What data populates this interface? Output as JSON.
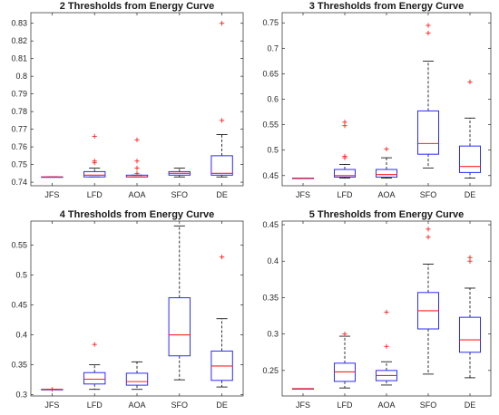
{
  "chart_data": [
    {
      "type": "box",
      "title": "2 Thresholds from Energy Curve",
      "categories": [
        "JFS",
        "LFD",
        "AOA",
        "SFO",
        "DE"
      ],
      "ylim": [
        0.738,
        0.836
      ],
      "yticks": [
        0.74,
        0.75,
        0.76,
        0.77,
        0.78,
        0.79,
        0.8,
        0.81,
        0.82,
        0.83
      ],
      "ytick_labels": [
        "0.74",
        "0.75",
        "0.76",
        "0.77",
        "0.78",
        "0.79",
        "0.8",
        "0.81",
        "0.82",
        "0.83"
      ],
      "boxes": [
        {
          "category": "JFS",
          "whislo": 0.743,
          "q1": 0.743,
          "med": 0.743,
          "q3": 0.743,
          "whishi": 0.743,
          "fliers": []
        },
        {
          "category": "LFD",
          "whislo": 0.743,
          "q1": 0.743,
          "med": 0.744,
          "q3": 0.746,
          "whishi": 0.748,
          "fliers": [
            0.751,
            0.752,
            0.766
          ]
        },
        {
          "category": "AOA",
          "whislo": 0.743,
          "q1": 0.743,
          "med": 0.743,
          "q3": 0.744,
          "whishi": 0.744,
          "fliers": [
            0.745,
            0.748,
            0.752,
            0.764
          ]
        },
        {
          "category": "SFO",
          "whislo": 0.743,
          "q1": 0.744,
          "med": 0.745,
          "q3": 0.746,
          "whishi": 0.748,
          "fliers": []
        },
        {
          "category": "DE",
          "whislo": 0.743,
          "q1": 0.744,
          "med": 0.745,
          "q3": 0.755,
          "whishi": 0.767,
          "fliers": [
            0.775,
            0.83
          ]
        }
      ]
    },
    {
      "type": "box",
      "title": "3 Thresholds from Energy Curve",
      "categories": [
        "JFS",
        "LFD",
        "AOA",
        "SFO",
        "DE"
      ],
      "ylim": [
        0.43,
        0.77
      ],
      "yticks": [
        0.45,
        0.5,
        0.55,
        0.6,
        0.65,
        0.7,
        0.75
      ],
      "ytick_labels": [
        "0.45",
        "0.5",
        "0.55",
        "0.6",
        "0.65",
        "0.7",
        "0.75"
      ],
      "boxes": [
        {
          "category": "JFS",
          "whislo": 0.445,
          "q1": 0.445,
          "med": 0.445,
          "q3": 0.445,
          "whishi": 0.445,
          "fliers": []
        },
        {
          "category": "LFD",
          "whislo": 0.445,
          "q1": 0.447,
          "med": 0.45,
          "q3": 0.462,
          "whishi": 0.472,
          "fliers": [
            0.485,
            0.488,
            0.548,
            0.555
          ]
        },
        {
          "category": "AOA",
          "whislo": 0.445,
          "q1": 0.447,
          "med": 0.452,
          "q3": 0.462,
          "whishi": 0.485,
          "fliers": [
            0.502
          ]
        },
        {
          "category": "SFO",
          "whislo": 0.465,
          "q1": 0.492,
          "med": 0.513,
          "q3": 0.577,
          "whishi": 0.675,
          "fliers": [
            0.73,
            0.745
          ]
        },
        {
          "category": "DE",
          "whislo": 0.445,
          "q1": 0.456,
          "med": 0.468,
          "q3": 0.508,
          "whishi": 0.563,
          "fliers": [
            0.634
          ]
        }
      ]
    },
    {
      "type": "box",
      "title": "4 Thresholds from Energy Curve",
      "categories": [
        "JFS",
        "LFD",
        "AOA",
        "SFO",
        "DE"
      ],
      "ylim": [
        0.298,
        0.59
      ],
      "yticks": [
        0.3,
        0.35,
        0.4,
        0.45,
        0.5,
        0.55
      ],
      "ytick_labels": [
        "0.3",
        "0.35",
        "0.4",
        "0.45",
        "0.5",
        "0.55"
      ],
      "boxes": [
        {
          "category": "JFS",
          "whislo": 0.309,
          "q1": 0.309,
          "med": 0.309,
          "q3": 0.309,
          "whishi": 0.309,
          "fliers": [
            0.309
          ]
        },
        {
          "category": "LFD",
          "whislo": 0.309,
          "q1": 0.318,
          "med": 0.326,
          "q3": 0.337,
          "whishi": 0.35,
          "fliers": [
            0.384
          ]
        },
        {
          "category": "AOA",
          "whislo": 0.309,
          "q1": 0.316,
          "med": 0.322,
          "q3": 0.336,
          "whishi": 0.355,
          "fliers": []
        },
        {
          "category": "SFO",
          "whislo": 0.325,
          "q1": 0.365,
          "med": 0.4,
          "q3": 0.462,
          "whishi": 0.582,
          "fliers": []
        },
        {
          "category": "DE",
          "whislo": 0.313,
          "q1": 0.324,
          "med": 0.348,
          "q3": 0.373,
          "whishi": 0.427,
          "fliers": [
            0.53
          ]
        }
      ]
    },
    {
      "type": "box",
      "title": "5 Thresholds from Energy Curve",
      "categories": [
        "JFS",
        "LFD",
        "AOA",
        "SFO",
        "DE"
      ],
      "ylim": [
        0.215,
        0.455
      ],
      "yticks": [
        0.25,
        0.3,
        0.35,
        0.4,
        0.45
      ],
      "ytick_labels": [
        "0.25",
        "0.3",
        "0.35",
        "0.4",
        "0.45"
      ],
      "boxes": [
        {
          "category": "JFS",
          "whislo": 0.225,
          "q1": 0.225,
          "med": 0.225,
          "q3": 0.225,
          "whishi": 0.225,
          "fliers": []
        },
        {
          "category": "LFD",
          "whislo": 0.226,
          "q1": 0.235,
          "med": 0.248,
          "q3": 0.26,
          "whishi": 0.297,
          "fliers": [
            0.3
          ]
        },
        {
          "category": "AOA",
          "whislo": 0.23,
          "q1": 0.236,
          "med": 0.243,
          "q3": 0.25,
          "whishi": 0.262,
          "fliers": [
            0.283,
            0.33
          ]
        },
        {
          "category": "SFO",
          "whislo": 0.245,
          "q1": 0.307,
          "med": 0.332,
          "q3": 0.357,
          "whishi": 0.396,
          "fliers": [
            0.433,
            0.444
          ]
        },
        {
          "category": "DE",
          "whislo": 0.24,
          "q1": 0.275,
          "med": 0.292,
          "q3": 0.323,
          "whishi": 0.363,
          "fliers": [
            0.4,
            0.405
          ]
        }
      ]
    }
  ]
}
